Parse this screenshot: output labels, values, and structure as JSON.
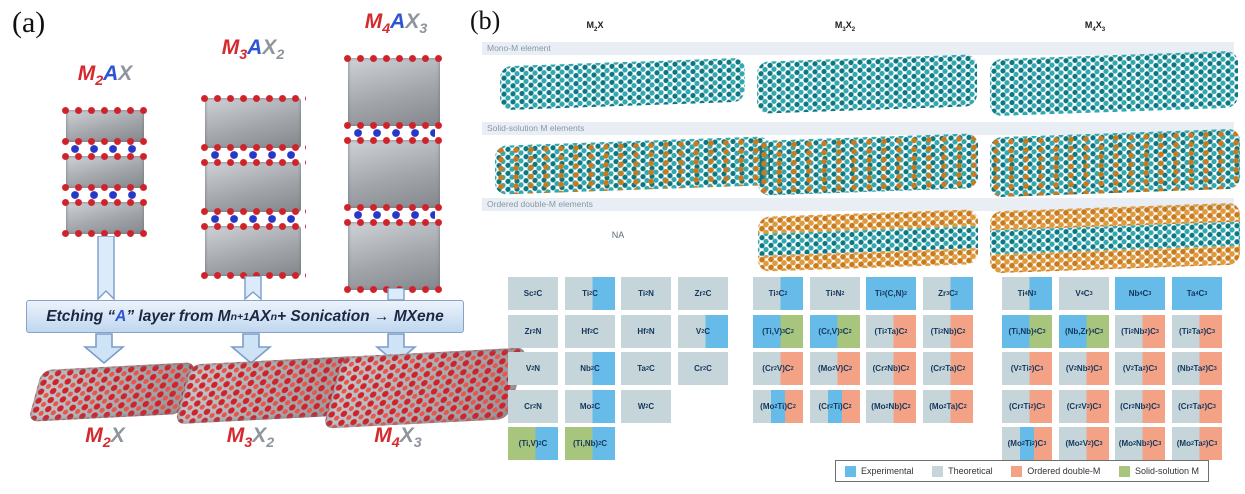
{
  "figure": {
    "panel_a_tag": "(a)",
    "panel_b_tag": "(b)"
  },
  "panel_a": {
    "max_labels": [
      [
        {
          "t": "M",
          "c": "m"
        },
        {
          "t": "2",
          "c": "m",
          "sub": true
        },
        {
          "t": "A",
          "c": "a"
        },
        {
          "t": "X",
          "c": "x"
        }
      ],
      [
        {
          "t": "M",
          "c": "m"
        },
        {
          "t": "3",
          "c": "m",
          "sub": true
        },
        {
          "t": "A",
          "c": "a"
        },
        {
          "t": "X",
          "c": "x"
        },
        {
          "t": "2",
          "c": "x",
          "sub": true
        }
      ],
      [
        {
          "t": "M",
          "c": "m"
        },
        {
          "t": "4",
          "c": "m",
          "sub": true
        },
        {
          "t": "A",
          "c": "a"
        },
        {
          "t": "X",
          "c": "x"
        },
        {
          "t": "3",
          "c": "x",
          "sub": true
        }
      ]
    ],
    "mxene_labels": [
      [
        {
          "t": "M",
          "c": "m"
        },
        {
          "t": "2",
          "c": "m",
          "sub": true
        },
        {
          "t": "X",
          "c": "x"
        }
      ],
      [
        {
          "t": "M",
          "c": "m"
        },
        {
          "t": "3",
          "c": "m",
          "sub": true
        },
        {
          "t": "X",
          "c": "x"
        },
        {
          "t": "2",
          "c": "x",
          "sub": true
        }
      ],
      [
        {
          "t": "M",
          "c": "m"
        },
        {
          "t": "4",
          "c": "m",
          "sub": true
        },
        {
          "t": "X",
          "c": "x"
        },
        {
          "t": "3",
          "c": "x",
          "sub": true
        }
      ]
    ],
    "banner": {
      "segments": [
        {
          "t": "Etching “",
          "c": "d"
        },
        {
          "t": "A",
          "c": "a"
        },
        {
          "t": "” layer from M",
          "c": "d"
        },
        {
          "t": "n+1",
          "c": "d",
          "sub": true
        },
        {
          "t": "AX",
          "c": "d"
        },
        {
          "t": "n",
          "c": "d",
          "sub": true
        },
        {
          "t": " + Sonication → MXene",
          "c": "d"
        }
      ]
    },
    "colors": {
      "m_color": "#d42a2e",
      "a_color": "#2e54d4",
      "x_color": "#8e959c"
    }
  },
  "panel_b": {
    "row_bands": [
      "Mono-M element",
      "Solid-solution M elements",
      "Ordered double-M elements"
    ],
    "na_label": "NA",
    "category_colors": {
      "E": "#66bbe8",
      "T": "#c5d5d9",
      "O": "#f4a286",
      "G": "#a8c57e"
    },
    "legend": {
      "items": [
        {
          "label": "Experimental",
          "code": "E"
        },
        {
          "label": "Theoretical",
          "code": "T"
        },
        {
          "label": "Ordered double-M",
          "code": "O"
        },
        {
          "label": "Solid-solution M",
          "code": "G"
        }
      ]
    },
    "groups": [
      {
        "header": "M_2_X",
        "rows": [
          [
            {
              "f": "Sc_2_C",
              "k": [
                "T"
              ]
            },
            {
              "f": "Ti_2_C",
              "k": [
                "T",
                "E"
              ]
            },
            {
              "f": "Ti_2_N",
              "k": [
                "T"
              ]
            },
            {
              "f": "Zr_2_C",
              "k": [
                "T"
              ]
            }
          ],
          [
            {
              "f": "Zr_2_N",
              "k": [
                "T"
              ]
            },
            {
              "f": "Hf_2_C",
              "k": [
                "T"
              ]
            },
            {
              "f": "Hf_2_N",
              "k": [
                "T"
              ]
            },
            {
              "f": "V_2_C",
              "k": [
                "T",
                "E"
              ]
            }
          ],
          [
            {
              "f": "V_2_N",
              "k": [
                "T"
              ]
            },
            {
              "f": "Nb_2_C",
              "k": [
                "T",
                "E"
              ]
            },
            {
              "f": "Ta_2_C",
              "k": [
                "T"
              ]
            },
            {
              "f": "Cr_2_C",
              "k": [
                "T"
              ]
            }
          ],
          [
            {
              "f": "Cr_2_N",
              "k": [
                "T"
              ]
            },
            {
              "f": "Mo_2_C",
              "k": [
                "T",
                "E"
              ]
            },
            {
              "f": "W_2_C",
              "k": [
                "T"
              ]
            },
            null
          ],
          [
            {
              "f": "(Ti,V)_2_C",
              "k": [
                "G",
                "E"
              ]
            },
            {
              "f": "(Ti,Nb)_2_C",
              "k": [
                "G",
                "E"
              ]
            },
            null,
            null
          ]
        ]
      },
      {
        "header": "M_3_X_2_",
        "rows": [
          [
            {
              "f": "Ti_3_C_2_",
              "k": [
                "T",
                "E"
              ]
            },
            {
              "f": "Ti_3_N_2_",
              "k": [
                "T"
              ]
            },
            {
              "f": "Ti_3_(C,N)_2_",
              "k": [
                "E"
              ]
            },
            {
              "f": "Zr_3_C_2_",
              "k": [
                "T",
                "E"
              ]
            }
          ],
          [
            {
              "f": "(Ti,V)_3_C_2_",
              "k": [
                "E",
                "G"
              ]
            },
            {
              "f": "(Cr,V)_3_C_2_",
              "k": [
                "E",
                "G"
              ]
            },
            {
              "f": "(Ti_2_Ta)C_2_",
              "k": [
                "T",
                "O"
              ]
            },
            {
              "f": "(Ti_2_Nb)C_2_",
              "k": [
                "T",
                "O"
              ]
            }
          ],
          [
            {
              "f": "(Cr_2_V)C_2_",
              "k": [
                "T",
                "O"
              ]
            },
            {
              "f": "(Mo_2_V)C_2_",
              "k": [
                "T",
                "O"
              ]
            },
            {
              "f": "(Cr_2_Nb)C_2_",
              "k": [
                "T",
                "O"
              ]
            },
            {
              "f": "(Cr_2_Ta)C_2_",
              "k": [
                "T",
                "O"
              ]
            }
          ],
          [
            {
              "f": "(Mo_2_Ti)C_2_",
              "k": [
                "T",
                "E",
                "O"
              ]
            },
            {
              "f": "(Cr_2_Ti)C_2_",
              "k": [
                "T",
                "E",
                "O"
              ]
            },
            {
              "f": "(Mo_2_Nb)C_2_",
              "k": [
                "T",
                "O"
              ]
            },
            {
              "f": "(Mo_2_Ta)C_2_",
              "k": [
                "T",
                "O"
              ]
            }
          ]
        ]
      },
      {
        "header": "M_4_X_3_",
        "rows": [
          [
            {
              "f": "Ti_4_N_3_",
              "k": [
                "T",
                "E"
              ]
            },
            {
              "f": "V_4_C_3_",
              "k": [
                "T"
              ]
            },
            {
              "f": "Nb_4_C_3_",
              "k": [
                "E"
              ]
            },
            {
              "f": "Ta_4_C_3_",
              "k": [
                "E"
              ]
            }
          ],
          [
            {
              "f": "(Ti,Nb)_4_C_3_",
              "k": [
                "E",
                "G"
              ]
            },
            {
              "f": "(Nb,Zr)_4_C_3_",
              "k": [
                "E",
                "G"
              ]
            },
            {
              "f": "(Ti_2_Nb_2_)C_3_",
              "k": [
                "T",
                "O"
              ]
            },
            {
              "f": "(Ti_2_Ta_2_)C_3_",
              "k": [
                "T",
                "O"
              ]
            }
          ],
          [
            {
              "f": "(V_2_Ti_2_)C_3_",
              "k": [
                "T",
                "O"
              ]
            },
            {
              "f": "(V_2_Nb_2_)C_3_",
              "k": [
                "T",
                "O"
              ]
            },
            {
              "f": "(V_2_Ta_2_)C_3_",
              "k": [
                "T",
                "O"
              ]
            },
            {
              "f": "(Nb_2_Ta_2_)C_3_",
              "k": [
                "T",
                "O"
              ]
            }
          ],
          [
            {
              "f": "(Cr_2_Ti_2_)C_3_",
              "k": [
                "T",
                "O"
              ]
            },
            {
              "f": "(Cr_2_V_2_)C_3_",
              "k": [
                "T",
                "O"
              ]
            },
            {
              "f": "(Cr_2_Nb_2_)C_3_",
              "k": [
                "T",
                "O"
              ]
            },
            {
              "f": "(Cr_2_Ta_2_)C_3_",
              "k": [
                "T",
                "O"
              ]
            }
          ],
          [
            {
              "f": "(Mo_2_Ti_2_)C_3_",
              "k": [
                "T",
                "E",
                "O"
              ]
            },
            {
              "f": "(Mo_2_V_2_)C_3_",
              "k": [
                "T",
                "O"
              ]
            },
            {
              "f": "(Mo_2_Nb_2_)C_3_",
              "k": [
                "T",
                "O"
              ]
            },
            {
              "f": "(Mo_2_Ta_2_)C_3_",
              "k": [
                "T",
                "O"
              ]
            }
          ]
        ]
      }
    ]
  }
}
